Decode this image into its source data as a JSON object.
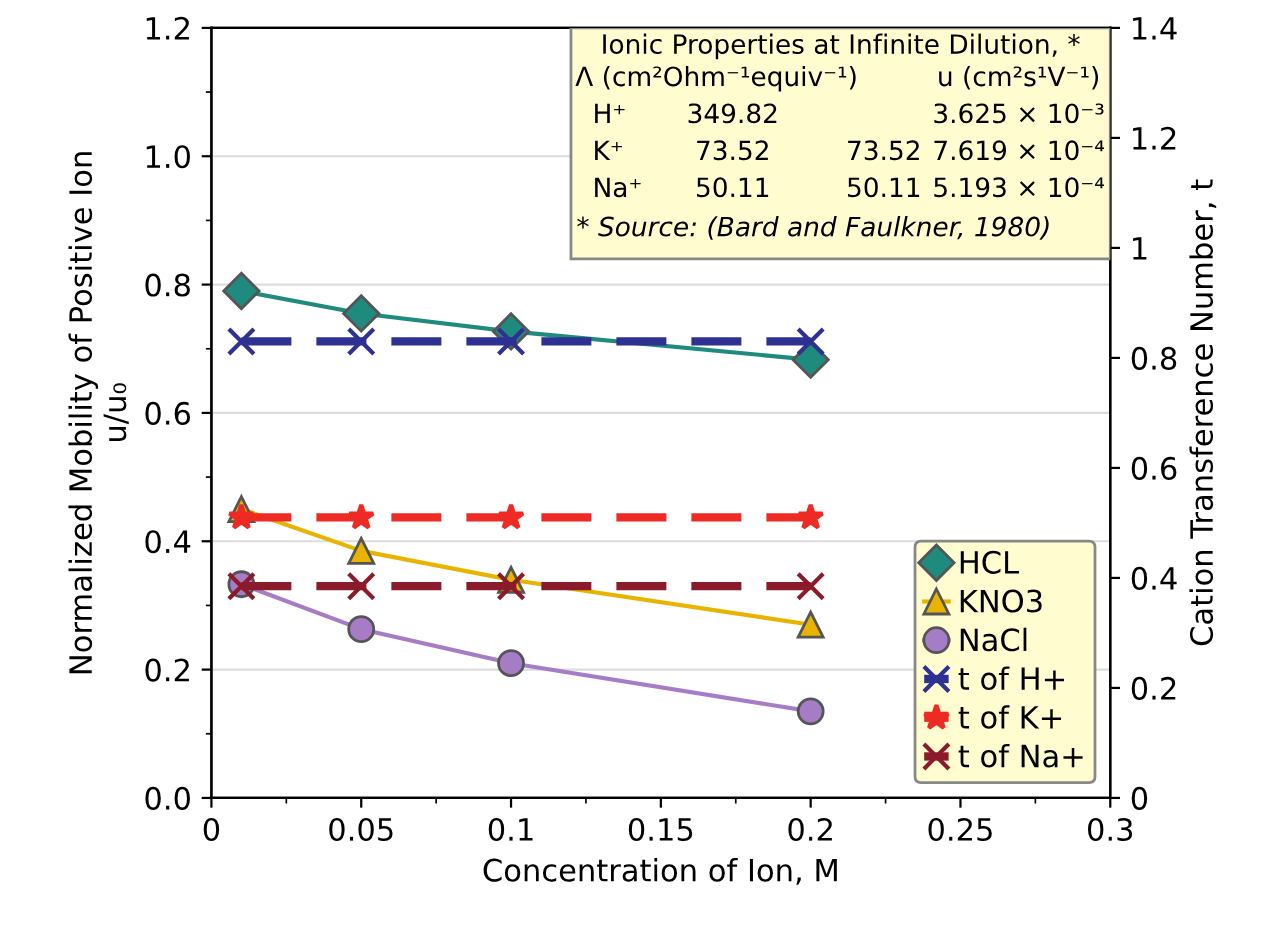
{
  "chart_data": {
    "type": "line",
    "xlabel": "Concentration of Ion, M",
    "ylabel": "Normalized Mobility of Positive Ion\nu/u₀",
    "y2label": "Cation Transference Number, t",
    "x": [
      0.01,
      0.05,
      0.1,
      0.2
    ],
    "xlim": [
      0,
      0.3
    ],
    "xticks": [
      0,
      0.05,
      0.1,
      0.15,
      0.2,
      0.25,
      0.3
    ],
    "ylim": [
      0,
      1.2
    ],
    "yticks": [
      {
        "value": 0,
        "label": "0.0"
      },
      0.2,
      0.4,
      0.6,
      0.8,
      {
        "value": 1,
        "label": "1.0"
      },
      1.2
    ],
    "y2lim": [
      0,
      1.4
    ],
    "y2ticks": [
      0,
      0.2,
      0.4,
      0.6,
      0.8,
      1,
      1.2,
      1.4
    ],
    "grid": "y",
    "legend": "bottom right",
    "series": [
      {
        "name": "HCL",
        "color": "#1f8a7e",
        "marker": "diamond",
        "line_style": "solid",
        "values": [
          0.79,
          0.755,
          0.727,
          0.683
        ]
      },
      {
        "name": "KNO3",
        "color": "#e8b400",
        "marker": "triangle",
        "line_style": "solid",
        "values": [
          0.45,
          0.385,
          0.34,
          0.27
        ]
      },
      {
        "name": "NaCl",
        "color": "#a77cc7",
        "marker": "circle",
        "line_style": "solid",
        "values": [
          0.333,
          0.263,
          0.21,
          0.135
        ]
      },
      {
        "name": "t of H+",
        "color": "#2e3192",
        "marker": "cross",
        "line_style": "dashed",
        "axis": "y2",
        "values": [
          0.83,
          0.83,
          0.83,
          0.83
        ]
      },
      {
        "name": "t of K+",
        "color": "#ee2a24",
        "marker": "star",
        "line_style": "dashed",
        "axis": "y2",
        "values": [
          0.51,
          0.51,
          0.51,
          0.51
        ]
      },
      {
        "name": "t of Na+",
        "color": "#8b1a2a",
        "marker": "cross",
        "line_style": "dashed",
        "axis": "y2",
        "values": [
          0.385,
          0.385,
          0.385,
          0.385
        ]
      }
    ],
    "annotations": [
      "Ionic Properties at Infinite Dilution, *",
      "Λ (cm²Ohm⁻¹equiv⁻¹)",
      "u (cm²s¹V⁻¹)",
      "H⁺",
      "349.82",
      "3.625 × 10⁻³",
      "K⁺",
      "73.52",
      "73.52",
      "7.619 × 10⁻⁴",
      "Na⁺",
      "50.11",
      "50.11",
      "5.193 × 10⁻⁴",
      "* Source: (Bard and Faulkner, 1980)"
    ]
  }
}
